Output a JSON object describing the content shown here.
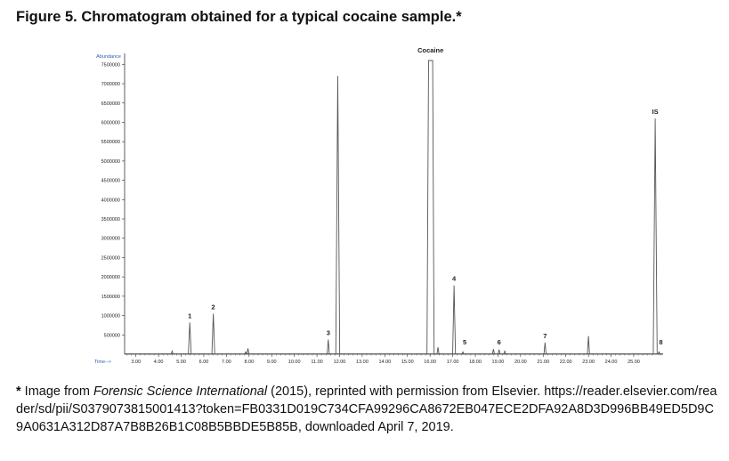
{
  "figure": {
    "title": "Figure 5.  Chromatogram obtained for a typical cocaine sample.*"
  },
  "caption": {
    "star": "*",
    "prefix": " Image from ",
    "journal": "Forensic Science International",
    "rest": " (2015), reprinted with permission from Elsevier. ",
    "url": "https://reader.elsevier.com/reader/sd/pii/S0379073815001413?token=FB0331D019C734CFA99296CA8672EB047ECE2DFA92A8D3D996BB49ED5D9C9A0631A312D87A7B8B26B1C08B5BBDE5B85B,",
    "suffix": " downloaded April 7, 2019."
  },
  "colors": {
    "axis": "#333333",
    "trace": "#555555",
    "axis_label": "#2a5db0"
  },
  "chart_data": {
    "type": "line",
    "ylabel": "Abundance",
    "xlabel": "Time-->",
    "xlim": [
      2.5,
      26.3
    ],
    "ylim": [
      0,
      7600000
    ],
    "x_ticks": [
      "3.00",
      "4.00",
      "5.00",
      "6.00",
      "7.00",
      "8.00",
      "9.00",
      "10.00",
      "11.00",
      "12.00",
      "13.00",
      "14.00",
      "15.00",
      "16.00",
      "17.00",
      "18.00",
      "19.00",
      "20.00",
      "21.00",
      "22.00",
      "23.00",
      "24.00",
      "25.00"
    ],
    "y_ticks": [
      "500000",
      "1000000",
      "1500000",
      "2000000",
      "2500000",
      "3000000",
      "3500000",
      "4000000",
      "4500000",
      "5000000",
      "5500000",
      "6000000",
      "6500000",
      "7000000",
      "7500000"
    ],
    "peaks": [
      {
        "label": "",
        "t": 4.6,
        "height": 80000
      },
      {
        "label": "1",
        "t": 5.38,
        "height": 820000
      },
      {
        "label": "2",
        "t": 6.42,
        "height": 1050000
      },
      {
        "label": "",
        "t": 7.85,
        "height": 60000
      },
      {
        "label": "",
        "t": 7.95,
        "height": 150000
      },
      {
        "label": "3",
        "t": 11.5,
        "height": 380000
      },
      {
        "label": "",
        "t": 11.92,
        "height": 7200000
      },
      {
        "label": "Cocaine",
        "t": 16.02,
        "height": 7600000
      },
      {
        "label": "",
        "t": 16.35,
        "height": 180000
      },
      {
        "label": "4",
        "t": 17.06,
        "height": 1780000
      },
      {
        "label": "5",
        "t": 17.45,
        "height": 60000
      },
      {
        "label": "",
        "t": 18.8,
        "height": 130000
      },
      {
        "label": "6",
        "t": 19.05,
        "height": 120000
      },
      {
        "label": "",
        "t": 19.3,
        "height": 80000
      },
      {
        "label": "7",
        "t": 21.08,
        "height": 300000
      },
      {
        "label": "",
        "t": 23.0,
        "height": 470000
      },
      {
        "label": "IS",
        "t": 25.95,
        "height": 6100000
      },
      {
        "label": "8",
        "t": 26.12,
        "height": 60000
      }
    ]
  }
}
